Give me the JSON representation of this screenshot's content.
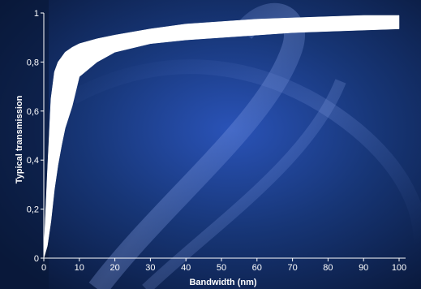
{
  "chart_data": {
    "type": "area",
    "title": "",
    "xlabel": "Bandwidth (nm)",
    "ylabel": "Typical transmission",
    "xlim": [
      0,
      100
    ],
    "ylim": [
      0,
      1
    ],
    "x_ticks": [
      0,
      10,
      20,
      30,
      40,
      50,
      60,
      70,
      80,
      90,
      100
    ],
    "y_ticks": [
      {
        "value": 0,
        "label": "0"
      },
      {
        "value": 0.2,
        "label": "0,2"
      },
      {
        "value": 0.4,
        "label": "0,4"
      },
      {
        "value": 0.6,
        "label": "0,6"
      },
      {
        "value": 0.8,
        "label": "0,8"
      },
      {
        "value": 1,
        "label": "1"
      }
    ],
    "band": {
      "x": [
        0,
        1,
        2,
        3,
        4,
        5,
        6,
        8,
        10,
        15,
        20,
        30,
        40,
        50,
        60,
        70,
        80,
        90,
        100
      ],
      "upper": [
        0.02,
        0.35,
        0.65,
        0.76,
        0.8,
        0.82,
        0.84,
        0.86,
        0.875,
        0.895,
        0.91,
        0.935,
        0.955,
        0.965,
        0.975,
        0.98,
        0.985,
        0.99,
        0.99
      ],
      "lower": [
        0.0,
        0.05,
        0.15,
        0.28,
        0.38,
        0.46,
        0.53,
        0.62,
        0.74,
        0.8,
        0.84,
        0.875,
        0.89,
        0.9,
        0.91,
        0.92,
        0.925,
        0.93,
        0.935
      ]
    },
    "grid": false,
    "legend": "none",
    "colors": {
      "band": "#ffffff",
      "axis": "#ffffff",
      "background": "#0b1a3c"
    }
  }
}
